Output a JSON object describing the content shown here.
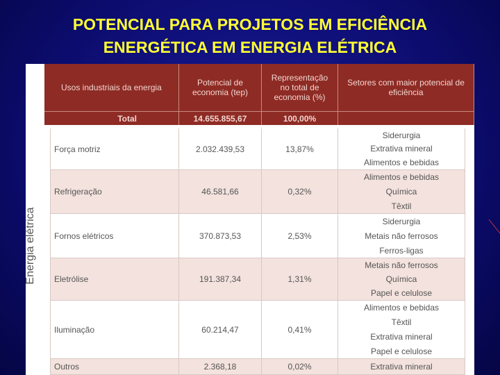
{
  "title": [
    "POTENCIAL PARA PROJETOS EM EFICIÊNCIA",
    "ENERGÉTICA EM ENERGIA ELÉTRICA"
  ],
  "table": {
    "headers": [
      "Usos industriais da energia",
      "Potencial de economia (tep)",
      "Representação no total de economia (%)",
      "Setores com maior potencial de eficiência"
    ],
    "total": [
      "Total",
      "14.655.855,67",
      "100,00%"
    ],
    "group": "Energia elétrica",
    "rows": [
      {
        "use": "Força motriz",
        "potential": "2.032.439,53",
        "share": "13,87%",
        "sectors": [
          "Siderurgia",
          "Extrativa mineral",
          "Alimentos e bebidas"
        ]
      },
      {
        "use": "Refrigeração",
        "potential": "46.581,66",
        "share": "0,32%",
        "sectors": [
          "Alimentos e bebidas",
          "Química",
          "Têxtil"
        ]
      },
      {
        "use": "Fornos elétricos",
        "potential": "370.873,53",
        "share": "2,53%",
        "sectors": [
          "Siderurgia",
          "Metais não ferrosos",
          "Ferros-ligas"
        ]
      },
      {
        "use": "Eletrólise",
        "potential": "191.387,34",
        "share": "1,31%",
        "sectors": [
          "Metais não ferrosos",
          "Química",
          "Papel e celulose"
        ]
      },
      {
        "use": "Iluminação",
        "potential": "60.214,47",
        "share": "0,41%",
        "sectors": [
          "Alimentos e bebidas",
          "Têxtil",
          "Extrativa mineral",
          "Papel e celulose"
        ]
      },
      {
        "use": "Outros",
        "potential": "2.368,18",
        "share": "0,02%",
        "sectors": [
          "Extrativa mineral"
        ]
      }
    ]
  }
}
